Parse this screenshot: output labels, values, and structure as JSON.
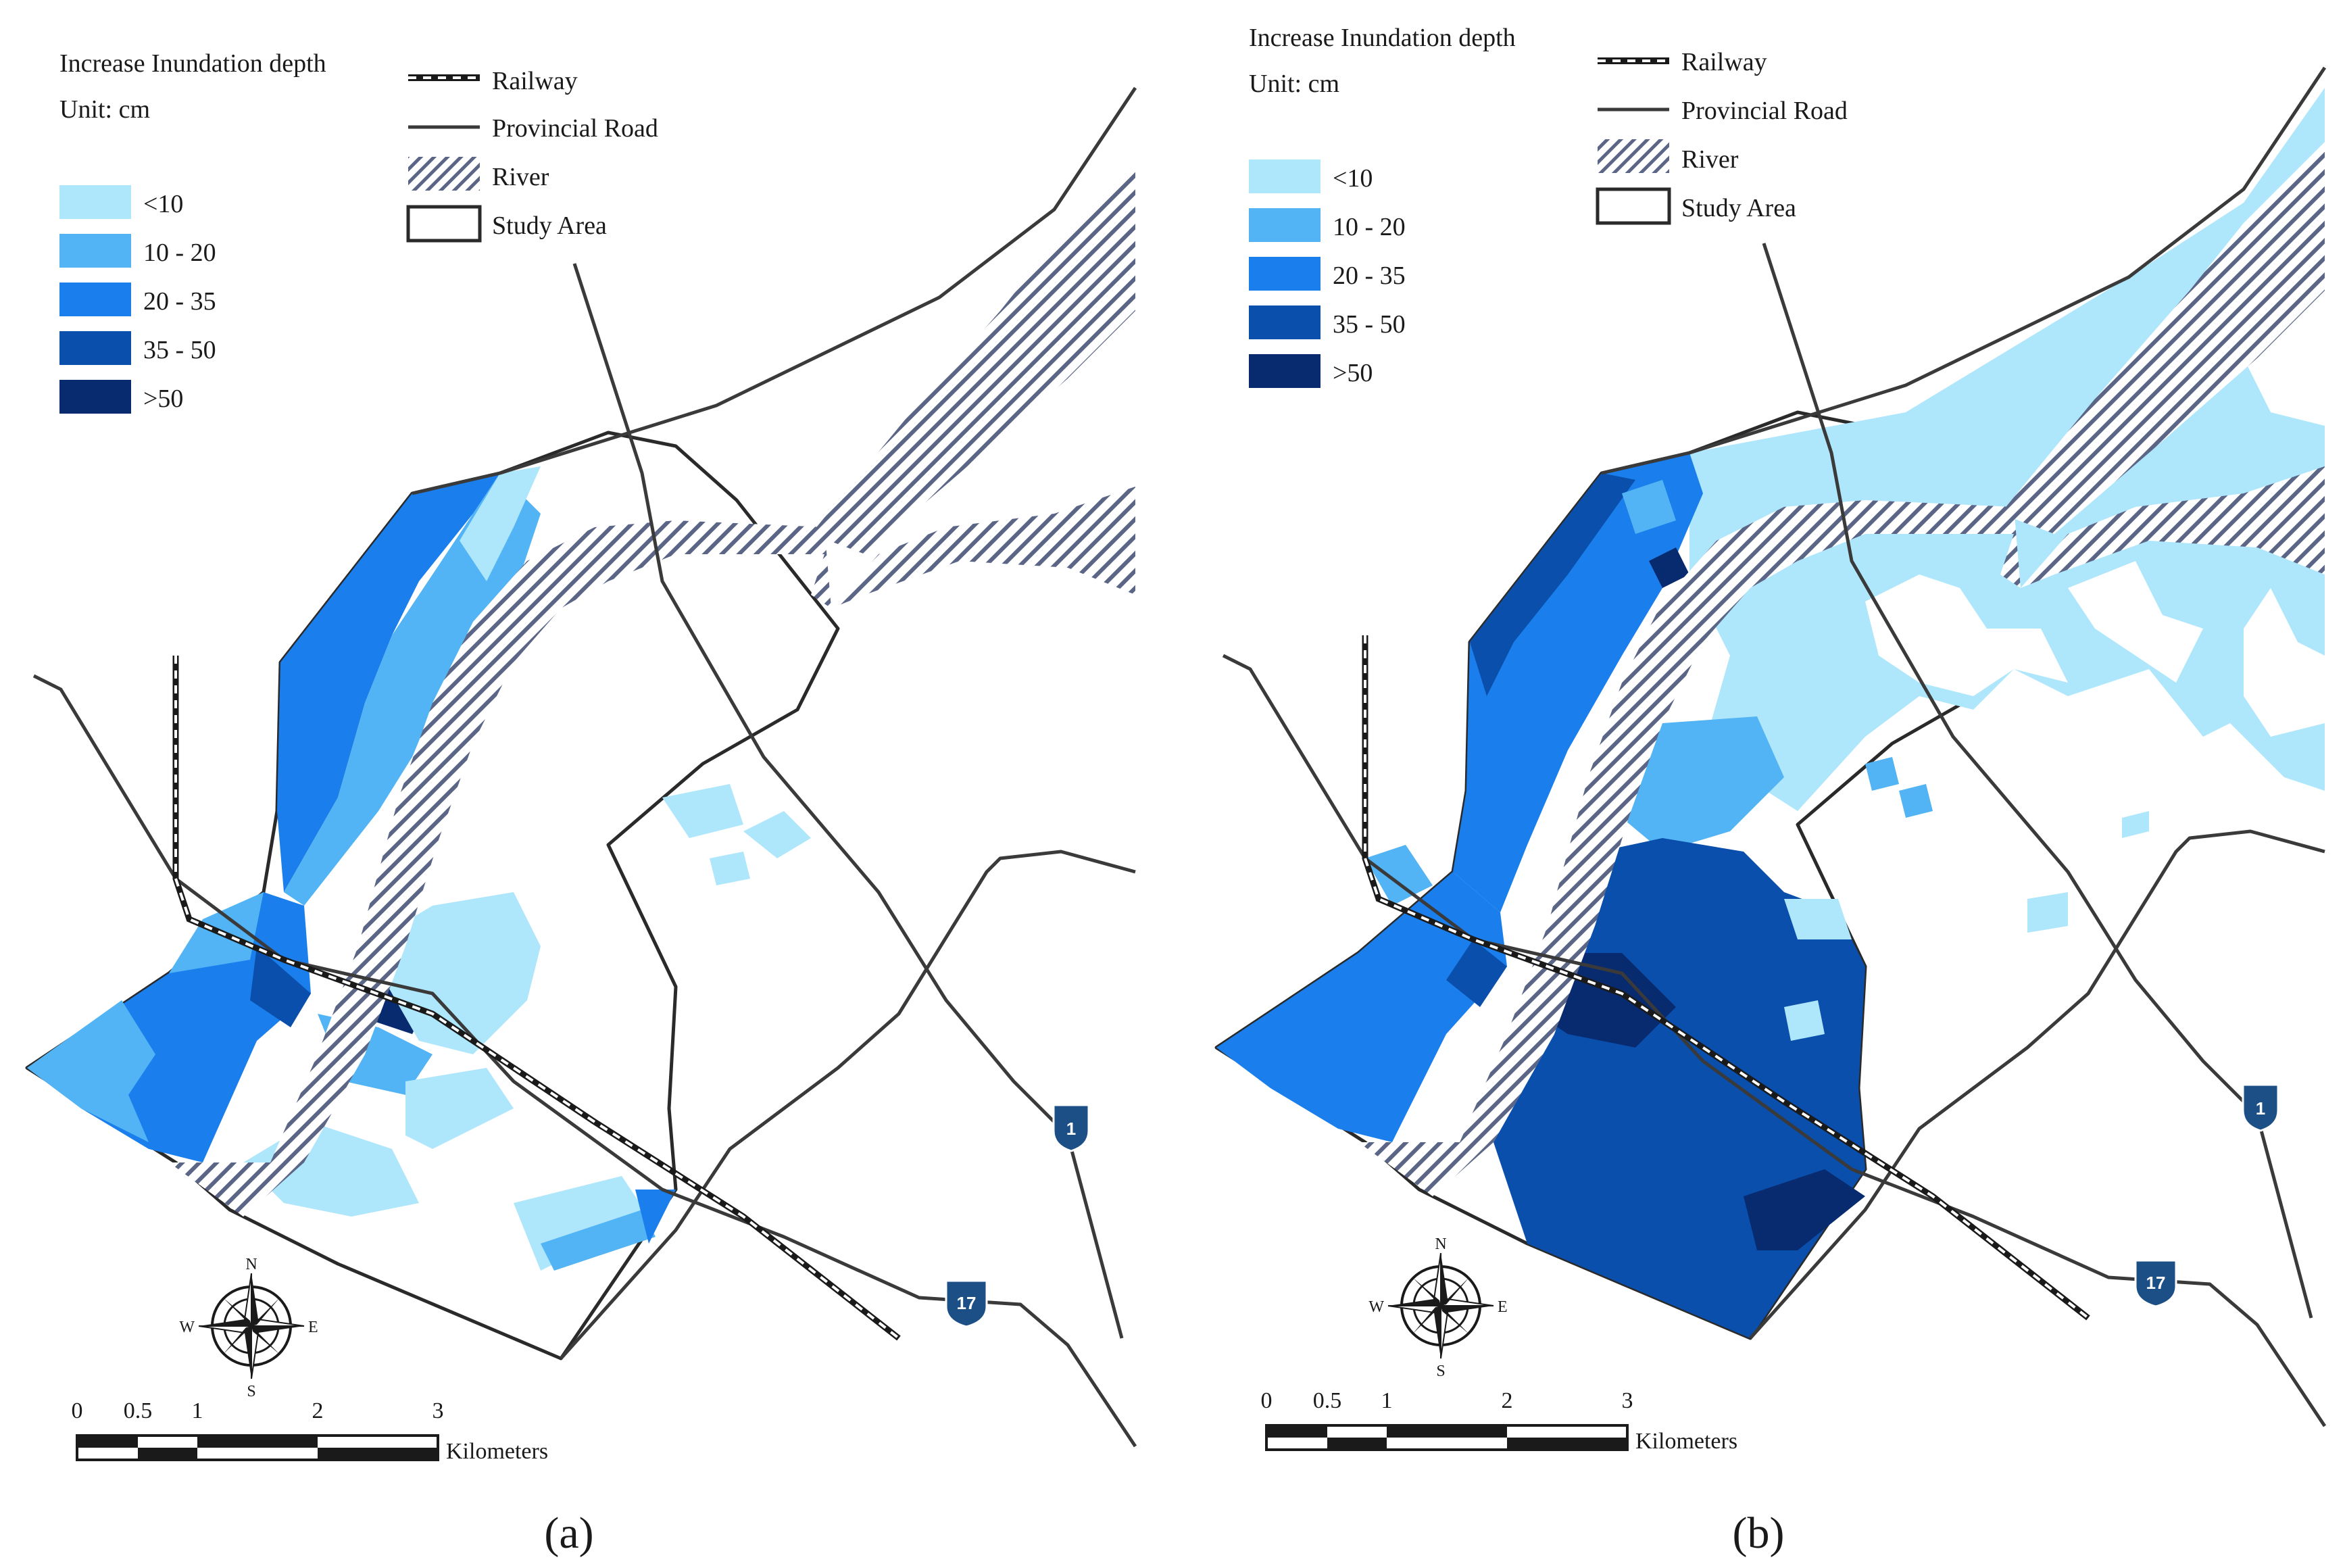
{
  "legend": {
    "title": "Increase Inundation depth",
    "unit": "Unit: cm",
    "classes": [
      {
        "label": "<10",
        "color": "#aee6fb"
      },
      {
        "label": "10 - 20",
        "color": "#52b4f4"
      },
      {
        "label": "20 - 35",
        "color": "#1a7fec"
      },
      {
        "label": "35 - 50",
        "color": "#0a4fac"
      },
      {
        "label": ">50",
        "color": "#082a6e"
      }
    ]
  },
  "features": {
    "railway": "Railway",
    "provincial_road": "Provincial Road",
    "river": "River",
    "study_area": "Study Area"
  },
  "scale_bar": {
    "ticks": [
      "0",
      "0.5",
      "1",
      "2",
      "3"
    ],
    "unit": "Kilometers"
  },
  "compass": {
    "n": "N",
    "s": "S",
    "e": "E",
    "w": "W"
  },
  "road_shields": {
    "road_1": "1",
    "road_17": "17"
  },
  "panels": [
    {
      "label": "(a)"
    },
    {
      "label": "(b)"
    }
  ],
  "colors": {
    "road": "#3a3a3a",
    "river_hatch": "#5b6687",
    "shield": "#1b4f86"
  }
}
